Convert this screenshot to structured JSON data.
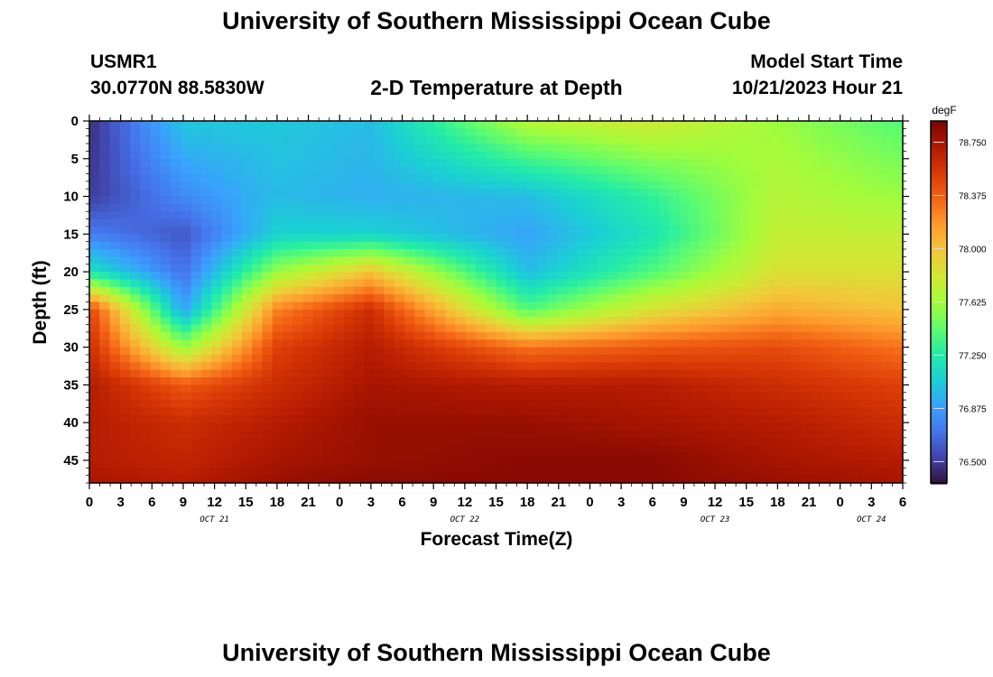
{
  "header": {
    "title": "University of Southern Mississippi Ocean Cube",
    "station": "USMR1",
    "location": "30.0770N  88.5830W",
    "plot_title": "2-D Temperature at Depth",
    "model_start_label": "Model Start Time",
    "model_start_value": "10/21/2023 Hour 21"
  },
  "footer_title": "University of Southern Mississippi Ocean Cube",
  "chart_data": {
    "type": "heatmap",
    "title": "2-D Temperature at Depth",
    "xlabel": "Forecast Time(Z)",
    "ylabel": "Depth (ft)",
    "x_tick_labels": [
      "0",
      "3",
      "6",
      "9",
      "12",
      "15",
      "18",
      "21",
      "0",
      "3",
      "6",
      "9",
      "12",
      "15",
      "18",
      "21",
      "0",
      "3",
      "6",
      "9",
      "12",
      "15",
      "18",
      "21",
      "0",
      "3",
      "6"
    ],
    "date_labels": [
      "OCT 21",
      "OCT 22",
      "OCT 23",
      "OCT 24"
    ],
    "x_hours": [
      0,
      78
    ],
    "y_ticks": [
      0,
      5,
      10,
      15,
      20,
      25,
      30,
      35,
      40,
      45
    ],
    "ylim": [
      0,
      48
    ],
    "colorbar": {
      "unit": "degF",
      "range": [
        76.35,
        78.9
      ],
      "tick_values": [
        76.5,
        76.875,
        77.25,
        77.625,
        78.0,
        78.375,
        78.75
      ],
      "tick_labels": [
        "76.500",
        "76.875",
        "77.250",
        "77.625",
        "78.000",
        "78.375",
        "78.750"
      ],
      "colors": [
        "#30123b",
        "#4145ab",
        "#4675ed",
        "#39a2fc",
        "#1bcfd4",
        "#24eca6",
        "#61fc6c",
        "#a4fc3b",
        "#d1e834",
        "#f3c63a",
        "#fe9b2d",
        "#f36315",
        "#d93806",
        "#b11901",
        "#7a0402"
      ]
    },
    "cross_sections_degF": [
      {
        "hour": 0,
        "depth_ft": [
          0,
          10,
          15,
          20,
          25,
          30,
          35,
          40,
          45,
          48
        ],
        "temp": [
          76.45,
          76.5,
          76.75,
          77.2,
          78.5,
          78.6,
          78.7,
          78.7,
          78.7,
          78.75
        ]
      },
      {
        "hour": 9,
        "depth_ft": [
          0,
          10,
          15,
          20,
          25,
          30,
          35,
          40,
          45,
          48
        ],
        "temp": [
          77.05,
          76.8,
          76.6,
          76.7,
          76.9,
          77.6,
          78.4,
          78.6,
          78.65,
          78.7
        ]
      },
      {
        "hour": 18,
        "depth_ft": [
          0,
          10,
          15,
          20,
          25,
          30,
          35,
          40,
          45,
          48
        ],
        "temp": [
          77.05,
          77.0,
          77.1,
          77.6,
          78.25,
          78.5,
          78.6,
          78.7,
          78.75,
          78.8
        ]
      },
      {
        "hour": 27,
        "depth_ft": [
          0,
          10,
          15,
          20,
          25,
          30,
          35,
          40,
          45,
          48
        ],
        "temp": [
          77.0,
          76.95,
          77.1,
          78.0,
          78.6,
          78.7,
          78.75,
          78.8,
          78.8,
          78.85
        ]
      },
      {
        "hour": 42,
        "depth_ft": [
          0,
          10,
          15,
          20,
          25,
          30,
          35,
          40,
          45,
          48
        ],
        "temp": [
          77.7,
          77.0,
          76.9,
          77.0,
          77.4,
          78.3,
          78.7,
          78.8,
          78.85,
          78.85
        ]
      },
      {
        "hour": 54,
        "depth_ft": [
          0,
          10,
          15,
          20,
          25,
          30,
          35,
          40,
          45,
          48
        ],
        "temp": [
          77.8,
          77.3,
          77.2,
          77.4,
          77.85,
          78.4,
          78.7,
          78.75,
          78.85,
          78.85
        ]
      },
      {
        "hour": 66,
        "depth_ft": [
          0,
          10,
          15,
          20,
          25,
          30,
          35,
          40,
          45,
          48
        ],
        "temp": [
          77.6,
          77.7,
          77.75,
          77.85,
          78.1,
          78.45,
          78.6,
          78.7,
          78.75,
          78.8
        ]
      },
      {
        "hour": 78,
        "depth_ft": [
          0,
          10,
          15,
          20,
          25,
          30,
          35,
          40,
          45,
          48
        ],
        "temp": [
          77.4,
          77.6,
          77.75,
          77.85,
          78.0,
          78.3,
          78.5,
          78.6,
          78.7,
          78.75
        ]
      }
    ]
  }
}
